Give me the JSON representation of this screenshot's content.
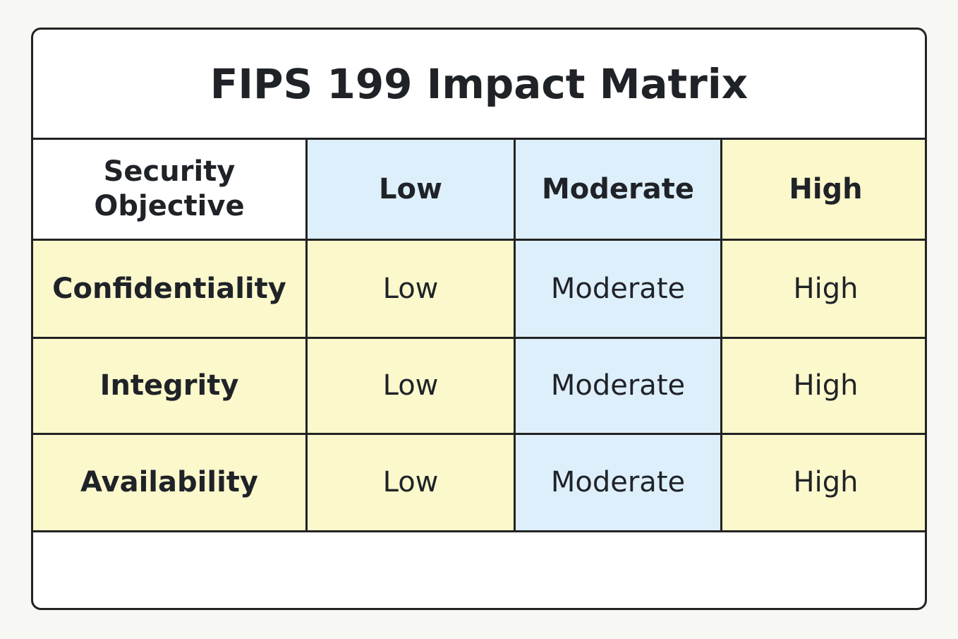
{
  "header": {
    "title": "FIPS 199 Impact Matrix"
  },
  "table": {
    "columns": [
      "Security Objective",
      "Low",
      "Moderate",
      "High"
    ],
    "rows": [
      [
        "Confidentiality",
        "Low",
        "Moderate",
        "High"
      ],
      [
        "Integrity",
        "Low",
        "Moderate",
        "High"
      ],
      [
        "Availability",
        "Low",
        "Moderate",
        "High"
      ]
    ]
  }
}
